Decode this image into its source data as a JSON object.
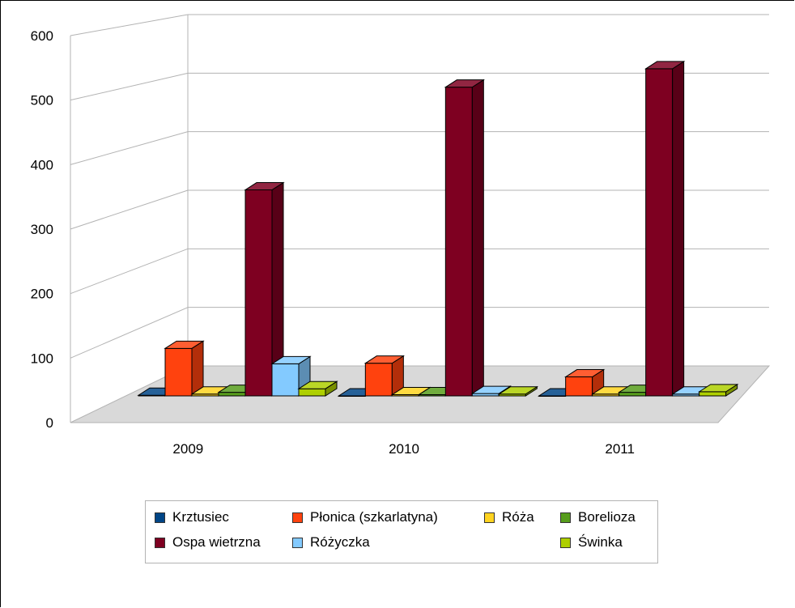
{
  "chart_data": {
    "type": "bar",
    "categories": [
      "2009",
      "2010",
      "2011"
    ],
    "ylim": [
      0,
      600
    ],
    "yticks": [
      0,
      100,
      200,
      300,
      400,
      500,
      600
    ],
    "grid": true,
    "legend_position": "bottom",
    "series": [
      {
        "name": "Krztusiec",
        "color": "#004586",
        "values": [
          1,
          0,
          0
        ]
      },
      {
        "name": "Płonica (szkarlatyna)",
        "color": "#ff420e",
        "values": [
          80,
          55,
          32
        ]
      },
      {
        "name": "Róża",
        "color": "#ffd320",
        "values": [
          3,
          2,
          3
        ]
      },
      {
        "name": "Borelioza",
        "color": "#579d1c",
        "values": [
          6,
          2,
          6
        ]
      },
      {
        "name": "Ospa wietrzna",
        "color": "#7e0021",
        "values": [
          347,
          520,
          551
        ]
      },
      {
        "name": "Różyczka",
        "color": "#83caff",
        "values": [
          54,
          4,
          3
        ]
      },
      {
        "name": "Świnka",
        "color": "#aecf00",
        "values": [
          12,
          3,
          7
        ]
      }
    ]
  }
}
